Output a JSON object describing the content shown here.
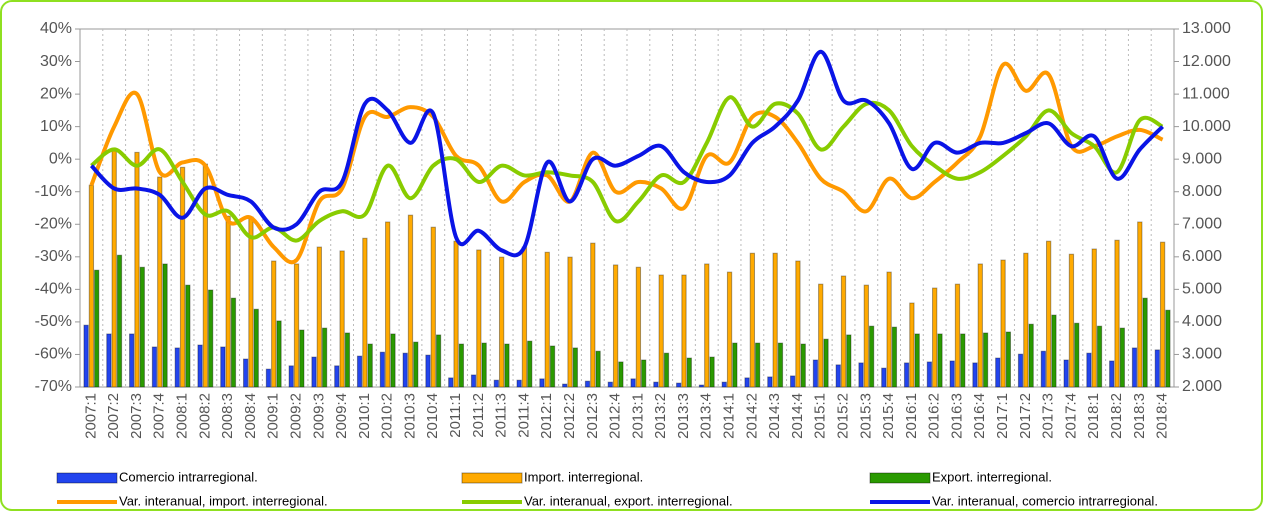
{
  "chart_data": {
    "type": "bar-line",
    "categories": [
      "2007:1",
      "2007:2",
      "2007:3",
      "2007:4",
      "2008:1",
      "2008:2",
      "2008:3",
      "2008:4",
      "2009:1",
      "2009:2",
      "2009:3",
      "2009:4",
      "2010:1",
      "2010:2",
      "2010:3",
      "2010:4",
      "2011:1",
      "2011:2",
      "2011:3",
      "2011:4",
      "2012:1",
      "2012:2",
      "2012:3",
      "2012:4",
      "2013:1",
      "2013:2",
      "2013:3",
      "2013:4",
      "2014:1",
      "2014:2",
      "2014:3",
      "2014:4",
      "2015:1",
      "2015:2",
      "2015:3",
      "2015:4",
      "2016:1",
      "2016:2",
      "2016:3",
      "2016:4",
      "2017:1",
      "2017:2",
      "2017:3",
      "2017:4",
      "2018:1",
      "2018:2",
      "2018:3",
      "2018:4"
    ],
    "ylim": [
      -70,
      40
    ],
    "yticks": [
      {
        "value": -70,
        "label": "-70%"
      },
      {
        "value": -60,
        "label": "-60%"
      },
      {
        "value": -50,
        "label": "-50%"
      },
      {
        "value": -40,
        "label": "-40%"
      },
      {
        "value": -30,
        "label": "-30%"
      },
      {
        "value": -20,
        "label": "-20%"
      },
      {
        "value": -10,
        "label": "-10%"
      },
      {
        "value": 0,
        "label": "0%"
      },
      {
        "value": 10,
        "label": "10%"
      },
      {
        "value": 20,
        "label": "20%"
      },
      {
        "value": 30,
        "label": "30%"
      },
      {
        "value": 40,
        "label": "40%"
      }
    ],
    "y2lim": [
      2000,
      13000
    ],
    "y2ticks": [
      {
        "value": 2000,
        "label": "2.000"
      },
      {
        "value": 3000,
        "label": "3.000"
      },
      {
        "value": 4000,
        "label": "4.000"
      },
      {
        "value": 5000,
        "label": "5.000"
      },
      {
        "value": 6000,
        "label": "6.000"
      },
      {
        "value": 7000,
        "label": "7.000"
      },
      {
        "value": 8000,
        "label": "8.000"
      },
      {
        "value": 9000,
        "label": "9.000"
      },
      {
        "value": 10000,
        "label": "10.000"
      },
      {
        "value": 11000,
        "label": "11.000"
      },
      {
        "value": 12000,
        "label": "12.000"
      },
      {
        "value": 13000,
        "label": "13.000"
      }
    ],
    "grid": "x",
    "series": [
      {
        "name": "Comercio intrarregional.",
        "type": "bar",
        "axis": "y2",
        "color": "#2244ee",
        "values": [
          3900,
          3630,
          3630,
          3230,
          3200,
          3290,
          3230,
          2860,
          2550,
          2650,
          2920,
          2650,
          2950,
          3070,
          3040,
          2980,
          2280,
          2370,
          2210,
          2210,
          2250,
          2090,
          2180,
          2150,
          2250,
          2150,
          2120,
          2060,
          2150,
          2280,
          2310,
          2340,
          2830,
          2680,
          2740,
          2580,
          2740,
          2770,
          2800,
          2740,
          2890,
          3010,
          3100,
          2830,
          3040,
          2800,
          3200,
          3140
        ]
      },
      {
        "name": "Import. interregional.",
        "type": "bar",
        "axis": "y2",
        "color": "#ffaa00",
        "values": [
          8200,
          9250,
          9210,
          8450,
          8750,
          8850,
          7250,
          7220,
          5870,
          5780,
          6300,
          6180,
          6570,
          7070,
          7280,
          6910,
          6480,
          6210,
          5990,
          6300,
          6140,
          5990,
          6420,
          5750,
          5680,
          5440,
          5440,
          5780,
          5530,
          6110,
          6110,
          5870,
          5160,
          5410,
          5130,
          5530,
          4580,
          5040,
          5160,
          5780,
          5900,
          6110,
          6480,
          6080,
          6240,
          6510,
          7070,
          6450
        ]
      },
      {
        "name": "Export. interregional.",
        "type": "bar",
        "axis": "y2",
        "color": "#2a9a00",
        "values": [
          5590,
          6050,
          5680,
          5780,
          5130,
          4980,
          4730,
          4390,
          4030,
          3750,
          3810,
          3660,
          3320,
          3630,
          3380,
          3600,
          3320,
          3350,
          3320,
          3410,
          3260,
          3200,
          3100,
          2770,
          2830,
          3040,
          2890,
          2920,
          3350,
          3350,
          3350,
          3320,
          3470,
          3600,
          3870,
          3840,
          3630,
          3630,
          3630,
          3660,
          3690,
          3930,
          4210,
          3960,
          3870,
          3810,
          4730,
          4360
        ]
      },
      {
        "name": "Var. interanual, import. interregional.",
        "type": "line",
        "color": "#ff9900",
        "values": [
          -8,
          10,
          20,
          -4,
          -1,
          -2,
          -19,
          -18,
          -27,
          -31,
          -13,
          -9,
          13,
          13,
          16,
          13,
          1,
          -2,
          -13,
          -7,
          -5,
          -13,
          2,
          -10,
          -7,
          -9,
          -15,
          1,
          -1,
          13,
          13,
          5,
          -6,
          -10,
          -16,
          -6,
          -12,
          -7,
          -1,
          7,
          29,
          21,
          26,
          4,
          4,
          7,
          9,
          6
        ]
      },
      {
        "name": "Var. interanual, export. interregional.",
        "type": "line",
        "color": "#88cc00",
        "values": [
          -2,
          3,
          -2,
          3,
          -7,
          -17,
          -16,
          -24,
          -21,
          -25,
          -19,
          -16,
          -17,
          -2,
          -12,
          -2,
          0,
          -7,
          -2,
          -5,
          -4,
          -5,
          -7,
          -19,
          -13,
          -5,
          -7,
          5,
          19,
          10,
          17,
          14,
          3,
          10,
          17,
          15,
          4,
          -2,
          -6,
          -4,
          1,
          7,
          15,
          8,
          4,
          -4,
          12,
          10
        ]
      },
      {
        "name": "Var. interanual, comercio intrarregional.",
        "type": "line",
        "color": "#0a14e6",
        "values": [
          -2,
          -9,
          -9,
          -11,
          -18,
          -9,
          -11,
          -13,
          -21,
          -20,
          -10,
          -7,
          17,
          15,
          5,
          14,
          -24,
          -22,
          -28,
          -27,
          -1,
          -13,
          0,
          -2,
          1,
          4,
          -4,
          -7,
          -5,
          5,
          10,
          18,
          33,
          18,
          18,
          11,
          -3,
          5,
          2,
          5,
          5,
          8,
          11,
          4,
          7,
          -6,
          3,
          10
        ]
      }
    ]
  }
}
